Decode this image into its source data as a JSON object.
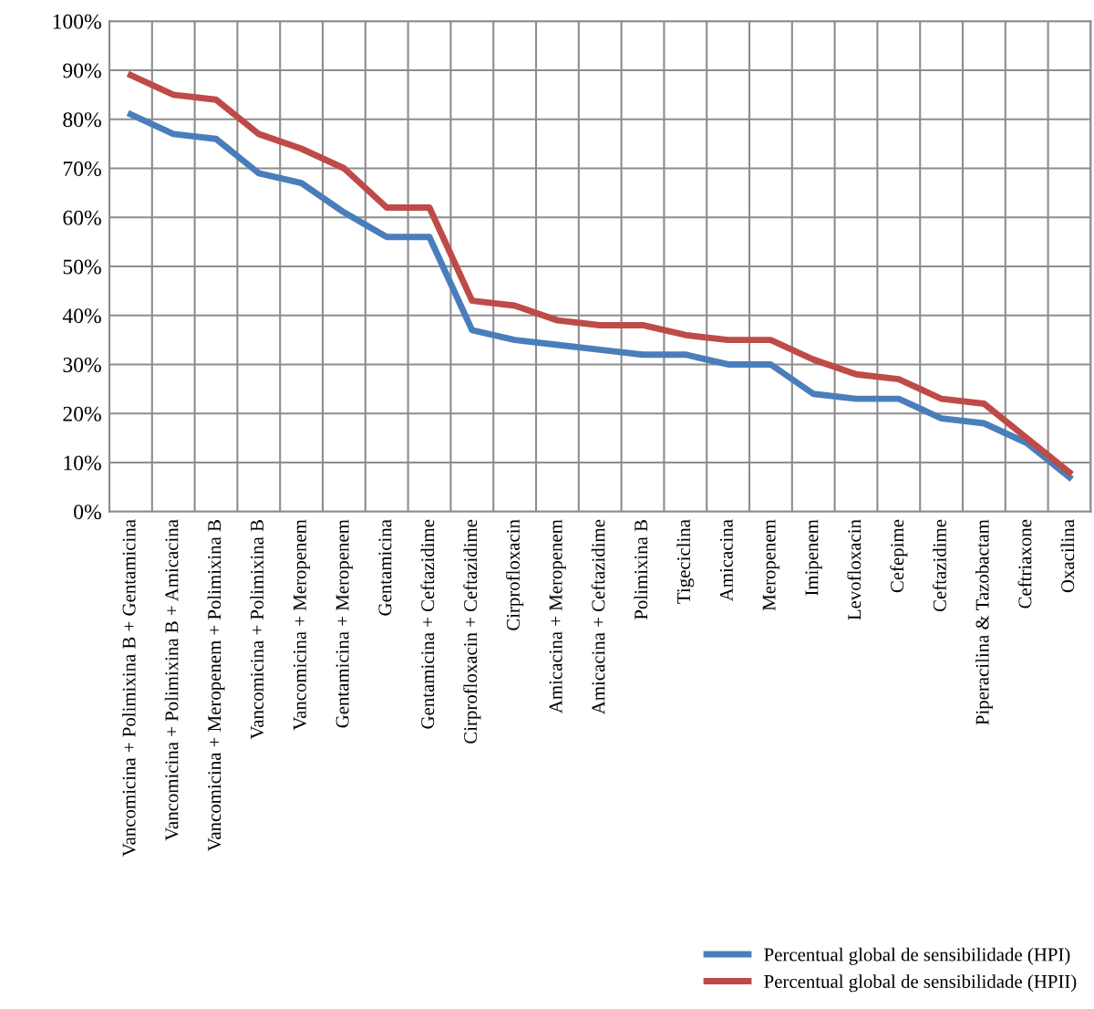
{
  "chart_data": {
    "type": "line",
    "categories": [
      "Vancomicina + Polimixina B + Gentamicina",
      "Vancomicina + Polimixina B + Amicacina",
      "Vancomicina + Meropenem + Polimixina B",
      "Vancomicina + Polimixina B",
      "Vancomicina + Meropenem",
      "Gentamicina + Meropenem",
      "Gentamicina",
      "Gentamicina + Ceftazidime",
      "Cirprofloxacin + Ceftazidime",
      "Cirprofloxacin",
      "Amicacina + Meropenem",
      "Amicacina + Ceftazidime",
      "Polimixina B",
      "Tigeciclina",
      "Amicacina",
      "Meropenem",
      "Imipenem",
      "Levofloxacin",
      "Cefepime",
      "Ceftazidime",
      "Piperacilina & Tazobactam",
      "Ceftriaxone",
      "Oxacilina"
    ],
    "series": [
      {
        "name": "Percentual global de sensibilidade (HPI)",
        "color": "#4a7ebb",
        "values": [
          81,
          77,
          76,
          69,
          67,
          61,
          56,
          56,
          37,
          35,
          34,
          33,
          32,
          32,
          30,
          30,
          24,
          23,
          23,
          19,
          18,
          14,
          7
        ]
      },
      {
        "name": "Percentual global de sensibilidade (HPII)",
        "color": "#be4b48",
        "values": [
          89,
          85,
          84,
          77,
          74,
          70,
          62,
          62,
          43,
          42,
          39,
          38,
          38,
          36,
          35,
          35,
          31,
          28,
          27,
          23,
          22,
          15,
          8
        ]
      }
    ],
    "ylim": [
      0,
      100
    ],
    "yticks": [
      {
        "value": 0,
        "label": "0%"
      },
      {
        "value": 10,
        "label": "10%"
      },
      {
        "value": 20,
        "label": "20%"
      },
      {
        "value": 30,
        "label": "30%"
      },
      {
        "value": 40,
        "label": "40%"
      },
      {
        "value": 50,
        "label": "50%"
      },
      {
        "value": 60,
        "label": "60%"
      },
      {
        "value": 70,
        "label": "70%"
      },
      {
        "value": 80,
        "label": "80%"
      },
      {
        "value": 90,
        "label": "90%"
      },
      {
        "value": 100,
        "label": "100%"
      }
    ],
    "grid": true,
    "legend": "bottom right",
    "marker": "none",
    "line_style": "solid"
  }
}
